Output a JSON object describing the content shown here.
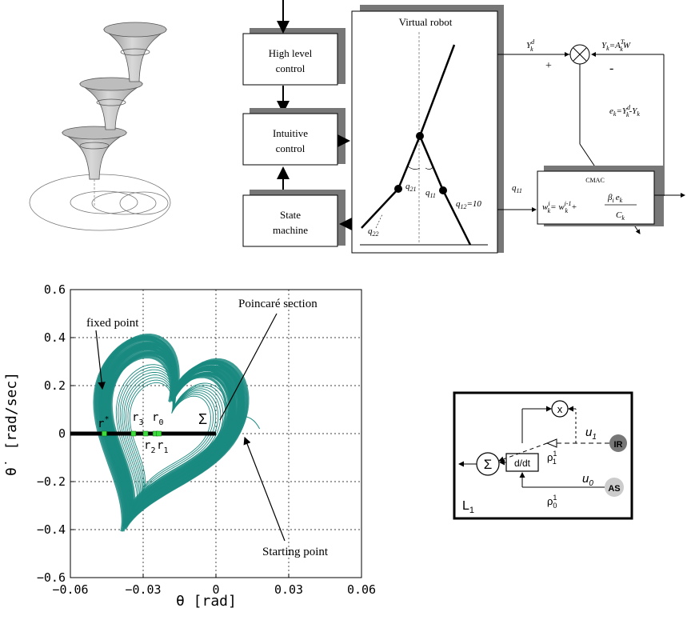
{
  "block_diagram": {
    "virtual_robot_label": "Virtual robot",
    "high_level_label_1": "High level",
    "high_level_label_2": "control",
    "intuitive_label_1": "Intuitive",
    "intuitive_label_2": "control",
    "state_machine_label_1": "State",
    "state_machine_label_2": "machine",
    "q21": "q",
    "q21_sub": "21",
    "q11": "q",
    "q11_sub": "11",
    "q12": "q",
    "q12_sub": "12",
    "q12_value": "=10",
    "q22": "q",
    "q22_sub": "22",
    "q11_signal": "q",
    "q11_signal_sub": "11",
    "yd_label": "Y",
    "yd_sub": "k",
    "yd_sup": "d",
    "yk_label": "Y",
    "yk_sub": "k",
    "yk_eq": "=A",
    "yk_eq_sub": "k",
    "yk_eq_sup": "T",
    "yk_eq_tail": "W",
    "plus": "+",
    "minus": "-",
    "ek_label": "e",
    "ek_sub": "k",
    "ek_eq": "=Y",
    "ek_eq_sub": "k",
    "ek_eq_sup": "d",
    "ek_eq_tail": "-Y",
    "ek_eq_tail_sub": "k",
    "cmac_label": "CMAC",
    "cmac_w": "w",
    "cmac_w_sub": "k",
    "cmac_w_sup": "i",
    "cmac_eq": "= w",
    "cmac_eq_sup": "i-1",
    "cmac_eq_sub": "k",
    "cmac_plus": "+",
    "cmac_num": "β",
    "cmac_num_sub": "i",
    "cmac_num_e": "e",
    "cmac_num_e_sub": "k",
    "cmac_den": "C",
    "cmac_den_sub": "k"
  },
  "chart_data": {
    "type": "scatter",
    "xlabel": "θ [rad]",
    "ylabel": "θ˙ [rad/sec]",
    "xlim": [
      -0.06,
      0.06
    ],
    "ylim": [
      -0.6,
      0.6
    ],
    "x_ticks": [
      "−0.06",
      "−0.03",
      "0",
      "0.03",
      "0.06"
    ],
    "y_ticks": [
      "0.6",
      "0.4",
      "0.2",
      "0",
      "−0.2",
      "−0.4",
      "−0.6"
    ],
    "grid": true,
    "series_color": "#1a8a80",
    "marker_color": "#3cdc3c",
    "section_x": [
      -0.06,
      0.0
    ],
    "markers": [
      {
        "label": "r*",
        "x": -0.046,
        "y": 0.0
      },
      {
        "label": "r3",
        "x": -0.034,
        "y": 0.0
      },
      {
        "label": "r2",
        "x": -0.029,
        "y": 0.0
      },
      {
        "label": "r0",
        "x": -0.025,
        "y": 0.0
      },
      {
        "label": "r1",
        "x": -0.0235,
        "y": 0.0
      }
    ],
    "annotations": {
      "fixed_point": "fixed point",
      "poincare": "Poincaré section",
      "sigma": "Σ",
      "starting": "Starting point",
      "r_star": "r",
      "r_star_sup": "*",
      "r3": "r",
      "r3_sub": "3",
      "r0": "r",
      "r0_sub": "0",
      "r2": "r",
      "r2_sub": "2",
      "r1": "r",
      "r1_sub": "1"
    }
  },
  "circuit": {
    "sum": "Σ",
    "mult": "x",
    "ddt": "d/dt",
    "u1": "u",
    "u1_sub": "1",
    "u0": "u",
    "u0_sub": "0",
    "rho1": "ρ",
    "rho1_sup": "1",
    "rho1_sub": "1",
    "rho0": "ρ",
    "rho0_sup": "1",
    "rho0_sub": "0",
    "ir": "IR",
    "as": "AS",
    "l1": "L",
    "l1_sub": "1"
  }
}
